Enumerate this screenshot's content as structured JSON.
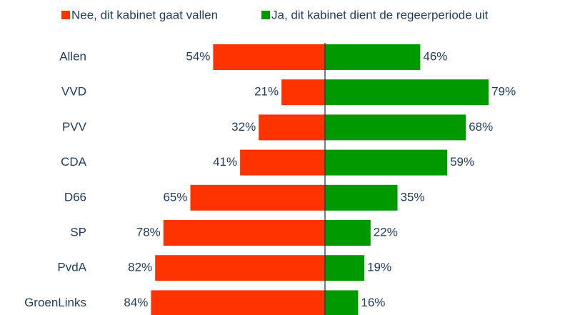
{
  "chart_data": {
    "type": "diverging-bar",
    "categories": [
      "Allen",
      "VVD",
      "PVV",
      "CDA",
      "D66",
      "SP",
      "PvdA",
      "GroenLinks"
    ],
    "series": [
      {
        "name": "Nee, dit kabinet gaat vallen",
        "color": "#ff3300",
        "direction": "left",
        "values": [
          54,
          21,
          32,
          41,
          65,
          78,
          82,
          84
        ],
        "value_labels": [
          "54%",
          "21%",
          "32%",
          "41%",
          "65%",
          "78%",
          "82%",
          "84%"
        ]
      },
      {
        "name": "Ja, dit kabinet dient de regeerperiode uit",
        "color": "#009900",
        "direction": "right",
        "values": [
          46,
          79,
          68,
          59,
          35,
          22,
          19,
          16
        ],
        "value_labels": [
          "46%",
          "79%",
          "68%",
          "59%",
          "35%",
          "22%",
          "19%",
          "16%"
        ]
      }
    ],
    "legend": "top"
  }
}
